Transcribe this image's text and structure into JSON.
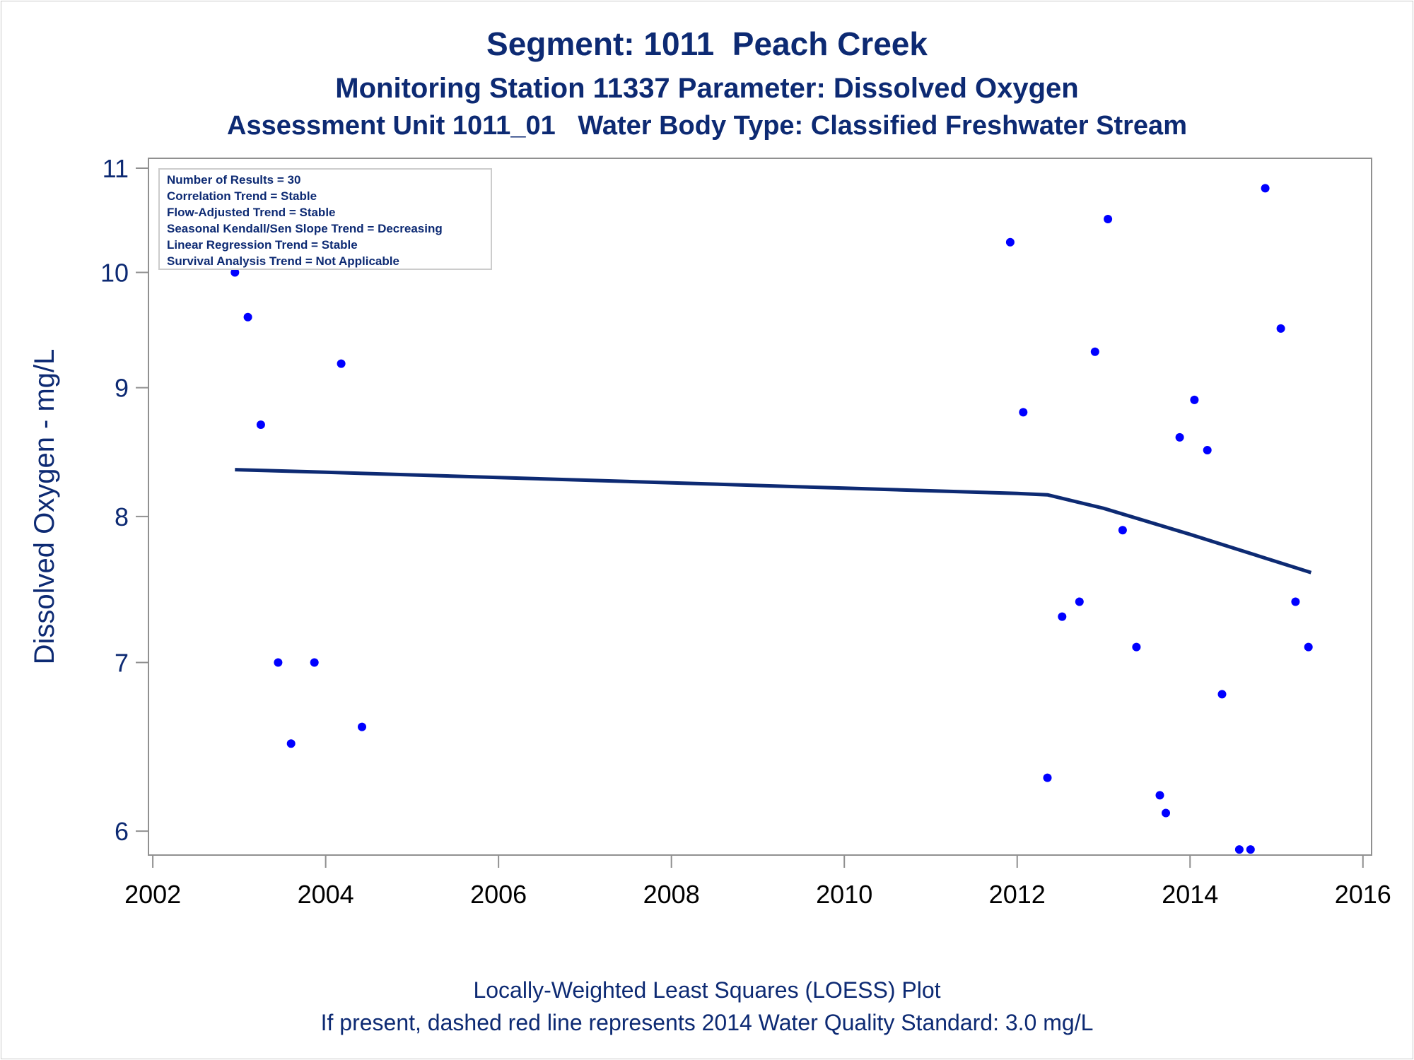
{
  "chart_data": {
    "type": "scatter",
    "title": "Segment: 1011  Peach Creek",
    "subtitle": "Monitoring Station 11337 Parameter: Dissolved Oxygen",
    "subtitle2": "Assessment Unit 1011_01   Water Body Type: Classified Freshwater Stream",
    "xlabel": "",
    "ylabel": "Dissolved Oxygen - mg/L",
    "footnote1": "Locally-Weighted Least Squares (LOESS) Plot",
    "footnote2": "If present, dashed red line represents 2014 Water Quality Standard: 3.0 mg/L",
    "y_scale": "log",
    "xlim": [
      2001.95,
      2016.1
    ],
    "ylim": [
      5.87,
      11.1
    ],
    "x_ticks": [
      2002,
      2004,
      2006,
      2008,
      2010,
      2012,
      2014,
      2016
    ],
    "x_tick_labels": [
      "2002",
      "2004",
      "2006",
      "2008",
      "2010",
      "2012",
      "2014",
      "2016"
    ],
    "y_ticks": [
      6,
      7,
      8,
      9,
      10,
      11
    ],
    "y_tick_labels": [
      "6",
      "7",
      "8",
      "9",
      "10",
      "11"
    ],
    "grid": false,
    "stats_box": [
      "Number of Results = 30",
      "Correlation Trend = Stable",
      "Flow-Adjusted Trend = Stable",
      "Seasonal Kendall/Sen Slope Trend = Decreasing",
      "Linear Regression Trend = Stable",
      "Survival Analysis Trend = Not Applicable"
    ],
    "colors": {
      "text": "#0d2a73",
      "points": "#0000ff",
      "loess": "#0d2a73",
      "axis": "#909090"
    },
    "series": [
      {
        "type": "scatter",
        "x": [
          2002.95,
          2003.1,
          2003.25,
          2003.45,
          2003.6,
          2003.87,
          2004.02,
          2004.18,
          2004.42,
          2011.92,
          2012.07,
          2012.35,
          2012.52,
          2012.72,
          2012.9,
          2013.05,
          2013.22,
          2013.38,
          2013.65,
          2013.72,
          2013.88,
          2014.05,
          2014.2,
          2014.37,
          2014.57,
          2014.7,
          2014.87,
          2015.05,
          2015.22,
          2015.37
        ],
        "y": [
          10.0,
          9.6,
          8.7,
          7.0,
          6.5,
          7.0,
          10.1,
          9.2,
          6.6,
          10.28,
          8.8,
          6.3,
          7.3,
          7.4,
          9.3,
          10.5,
          7.9,
          7.1,
          6.2,
          6.1,
          8.6,
          8.9,
          8.5,
          6.8,
          5.9,
          5.9,
          10.8,
          9.5,
          7.4,
          7.1
        ]
      },
      {
        "type": "line",
        "x": [
          2002.95,
          2004.0,
          2006.0,
          2008.0,
          2010.0,
          2012.0,
          2012.35,
          2013.0,
          2014.0,
          2015.4
        ],
        "y": [
          8.35,
          8.33,
          8.29,
          8.25,
          8.21,
          8.17,
          8.16,
          8.06,
          7.87,
          7.6
        ]
      }
    ]
  }
}
